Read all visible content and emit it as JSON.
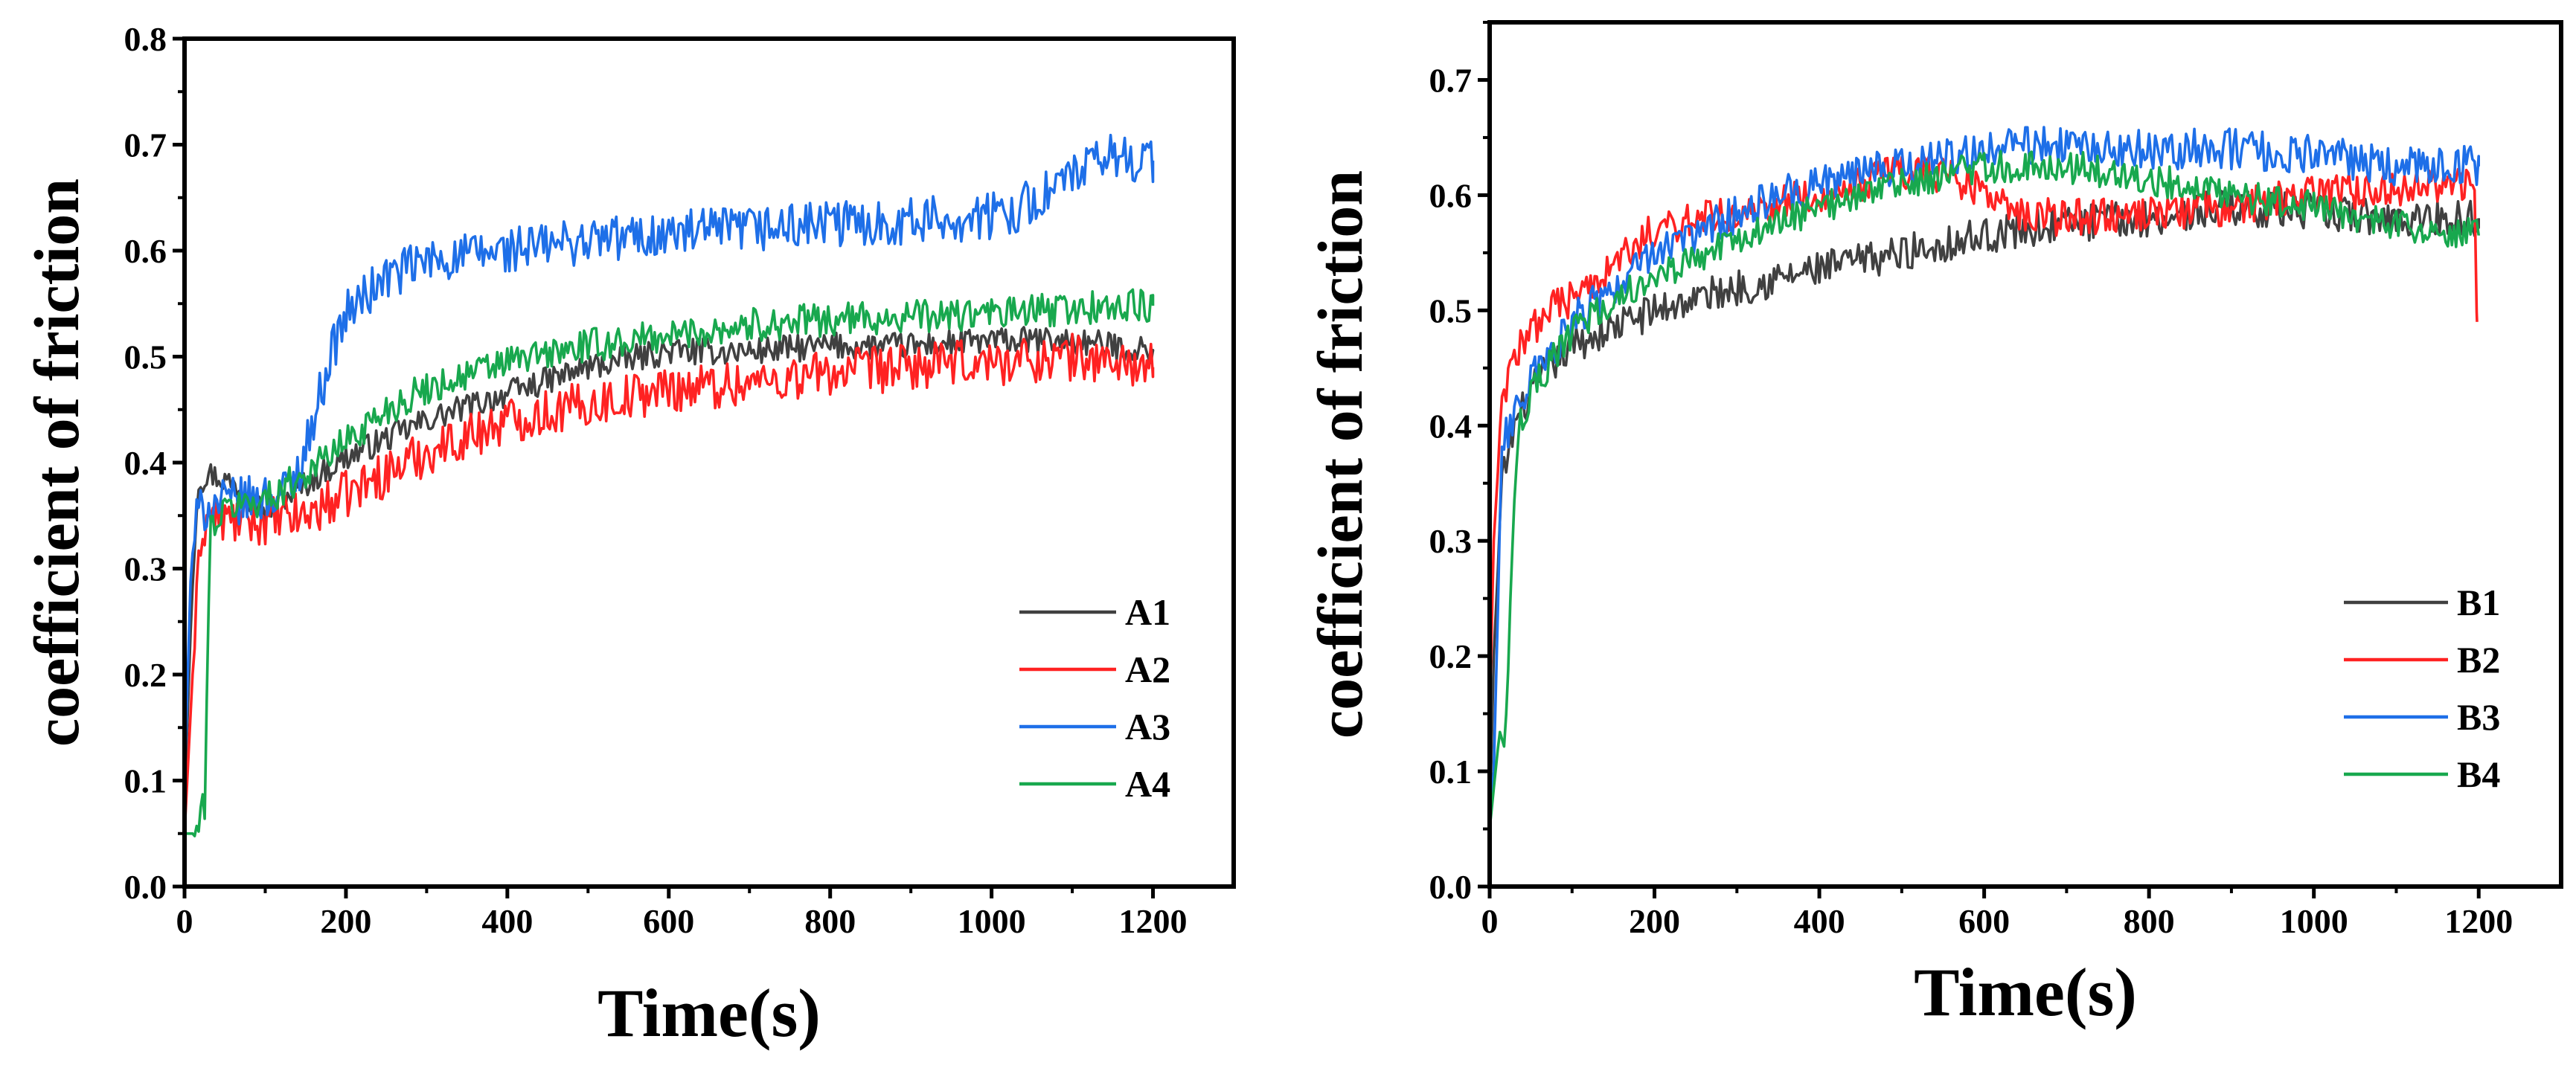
{
  "chart_data": [
    {
      "type": "line",
      "panel": "left",
      "title": "",
      "xlabel": "Time(s)",
      "ylabel": "coefficient of friction",
      "xlim": [
        0,
        1300
      ],
      "ylim": [
        0.0,
        0.8
      ],
      "xticks": [
        0,
        200,
        400,
        600,
        800,
        1000,
        1200
      ],
      "yticks": [
        0.0,
        0.1,
        0.2,
        0.3,
        0.4,
        0.5,
        0.6,
        0.7,
        0.8
      ],
      "xtick_labels": [
        "0",
        "200",
        "400",
        "600",
        "800",
        "1000",
        "1200"
      ],
      "ytick_labels": [
        "0.0",
        "0.1",
        "0.2",
        "0.3",
        "0.4",
        "0.5",
        "0.6",
        "0.7",
        "0.8"
      ],
      "grid": false,
      "legend_position": "bottom-right",
      "series": [
        {
          "name": "A1",
          "color": "#404040",
          "noise": 0.008,
          "points": [
            [
              0,
              0.08
            ],
            [
              8,
              0.25
            ],
            [
              16,
              0.38
            ],
            [
              30,
              0.39
            ],
            [
              60,
              0.38
            ],
            [
              100,
              0.355
            ],
            [
              150,
              0.38
            ],
            [
              200,
              0.405
            ],
            [
              300,
              0.44
            ],
            [
              400,
              0.465
            ],
            [
              500,
              0.49
            ],
            [
              600,
              0.505
            ],
            [
              700,
              0.505
            ],
            [
              800,
              0.51
            ],
            [
              900,
              0.51
            ],
            [
              1000,
              0.515
            ],
            [
              1100,
              0.515
            ],
            [
              1200,
              0.505
            ]
          ]
        },
        {
          "name": "A2",
          "color": "#ff2222",
          "noise": 0.014,
          "points": [
            [
              0,
              0.05
            ],
            [
              10,
              0.2
            ],
            [
              20,
              0.33
            ],
            [
              30,
              0.35
            ],
            [
              60,
              0.345
            ],
            [
              100,
              0.345
            ],
            [
              150,
              0.35
            ],
            [
              200,
              0.37
            ],
            [
              300,
              0.41
            ],
            [
              400,
              0.44
            ],
            [
              500,
              0.455
            ],
            [
              600,
              0.47
            ],
            [
              700,
              0.475
            ],
            [
              800,
              0.485
            ],
            [
              900,
              0.49
            ],
            [
              1000,
              0.495
            ],
            [
              1100,
              0.5
            ],
            [
              1200,
              0.49
            ]
          ]
        },
        {
          "name": "A3",
          "color": "#1e6fe8",
          "noise": 0.014,
          "points": [
            [
              0,
              0.1
            ],
            [
              8,
              0.3
            ],
            [
              15,
              0.35
            ],
            [
              30,
              0.36
            ],
            [
              80,
              0.365
            ],
            [
              120,
              0.37
            ],
            [
              140,
              0.39
            ],
            [
              160,
              0.44
            ],
            [
              180,
              0.5
            ],
            [
              200,
              0.54
            ],
            [
              250,
              0.575
            ],
            [
              300,
              0.59
            ],
            [
              400,
              0.6
            ],
            [
              500,
              0.61
            ],
            [
              600,
              0.615
            ],
            [
              700,
              0.62
            ],
            [
              800,
              0.625
            ],
            [
              900,
              0.628
            ],
            [
              1000,
              0.632
            ],
            [
              1050,
              0.645
            ],
            [
              1100,
              0.67
            ],
            [
              1150,
              0.69
            ],
            [
              1200,
              0.685
            ]
          ]
        },
        {
          "name": "A4",
          "color": "#18a84e",
          "noise": 0.01,
          "points": [
            [
              0,
              0.05
            ],
            [
              15,
              0.05
            ],
            [
              25,
              0.08
            ],
            [
              32,
              0.34
            ],
            [
              60,
              0.36
            ],
            [
              100,
              0.365
            ],
            [
              150,
              0.39
            ],
            [
              200,
              0.42
            ],
            [
              250,
              0.45
            ],
            [
              300,
              0.47
            ],
            [
              400,
              0.495
            ],
            [
              500,
              0.51
            ],
            [
              600,
              0.52
            ],
            [
              700,
              0.53
            ],
            [
              800,
              0.535
            ],
            [
              900,
              0.538
            ],
            [
              1000,
              0.54
            ],
            [
              1100,
              0.545
            ],
            [
              1200,
              0.548
            ]
          ]
        }
      ]
    },
    {
      "type": "line",
      "panel": "right",
      "title": "",
      "xlabel": "Time(s)",
      "ylabel": "coefficient of friction",
      "xlim": [
        0,
        1300
      ],
      "ylim": [
        0.0,
        0.75
      ],
      "xticks": [
        0,
        200,
        400,
        600,
        800,
        1000,
        1200
      ],
      "yticks": [
        0.0,
        0.1,
        0.2,
        0.3,
        0.4,
        0.5,
        0.6,
        0.7
      ],
      "xtick_labels": [
        "0",
        "200",
        "400",
        "600",
        "800",
        "1000",
        "1200"
      ],
      "ytick_labels": [
        "0.0",
        "0.1",
        "0.2",
        "0.3",
        "0.4",
        "0.5",
        "0.6",
        "0.7"
      ],
      "grid": false,
      "legend_position": "bottom-right",
      "series": [
        {
          "name": "B1",
          "color": "#404040",
          "noise": 0.01,
          "points": [
            [
              0,
              0.05
            ],
            [
              5,
              0.2
            ],
            [
              15,
              0.35
            ],
            [
              30,
              0.4
            ],
            [
              60,
              0.44
            ],
            [
              100,
              0.47
            ],
            [
              200,
              0.5
            ],
            [
              300,
              0.52
            ],
            [
              400,
              0.535
            ],
            [
              500,
              0.55
            ],
            [
              600,
              0.565
            ],
            [
              700,
              0.575
            ],
            [
              800,
              0.58
            ],
            [
              900,
              0.59
            ],
            [
              1000,
              0.585
            ],
            [
              1100,
              0.58
            ],
            [
              1200,
              0.58
            ]
          ]
        },
        {
          "name": "B2",
          "color": "#ff2222",
          "noise": 0.01,
          "points": [
            [
              0,
              0.15
            ],
            [
              5,
              0.3
            ],
            [
              15,
              0.42
            ],
            [
              30,
              0.46
            ],
            [
              50,
              0.48
            ],
            [
              70,
              0.5
            ],
            [
              100,
              0.51
            ],
            [
              150,
              0.54
            ],
            [
              200,
              0.57
            ],
            [
              300,
              0.585
            ],
            [
              400,
              0.6
            ],
            [
              500,
              0.62
            ],
            [
              550,
              0.618
            ],
            [
              600,
              0.605
            ],
            [
              630,
              0.585
            ],
            [
              700,
              0.58
            ],
            [
              800,
              0.585
            ],
            [
              900,
              0.59
            ],
            [
              1000,
              0.6
            ],
            [
              1100,
              0.605
            ],
            [
              1195,
              0.61
            ],
            [
              1198,
              0.49
            ]
          ]
        },
        {
          "name": "B3",
          "color": "#1e6fe8",
          "noise": 0.011,
          "points": [
            [
              0,
              0.05
            ],
            [
              5,
              0.1
            ],
            [
              15,
              0.38
            ],
            [
              30,
              0.41
            ],
            [
              60,
              0.45
            ],
            [
              100,
              0.49
            ],
            [
              150,
              0.52
            ],
            [
              200,
              0.55
            ],
            [
              300,
              0.585
            ],
            [
              400,
              0.61
            ],
            [
              500,
              0.625
            ],
            [
              600,
              0.64
            ],
            [
              700,
              0.645
            ],
            [
              800,
              0.64
            ],
            [
              900,
              0.64
            ],
            [
              1000,
              0.635
            ],
            [
              1100,
              0.625
            ],
            [
              1200,
              0.625
            ]
          ]
        },
        {
          "name": "B4",
          "color": "#18a84e",
          "noise": 0.009,
          "points": [
            [
              0,
              0.05
            ],
            [
              10,
              0.12
            ],
            [
              20,
              0.14
            ],
            [
              28,
              0.3
            ],
            [
              35,
              0.4
            ],
            [
              60,
              0.44
            ],
            [
              100,
              0.48
            ],
            [
              150,
              0.51
            ],
            [
              200,
              0.53
            ],
            [
              300,
              0.56
            ],
            [
              400,
              0.59
            ],
            [
              500,
              0.61
            ],
            [
              600,
              0.625
            ],
            [
              700,
              0.625
            ],
            [
              800,
              0.615
            ],
            [
              900,
              0.6
            ],
            [
              1000,
              0.59
            ],
            [
              1100,
              0.575
            ],
            [
              1200,
              0.565
            ]
          ]
        }
      ]
    }
  ]
}
